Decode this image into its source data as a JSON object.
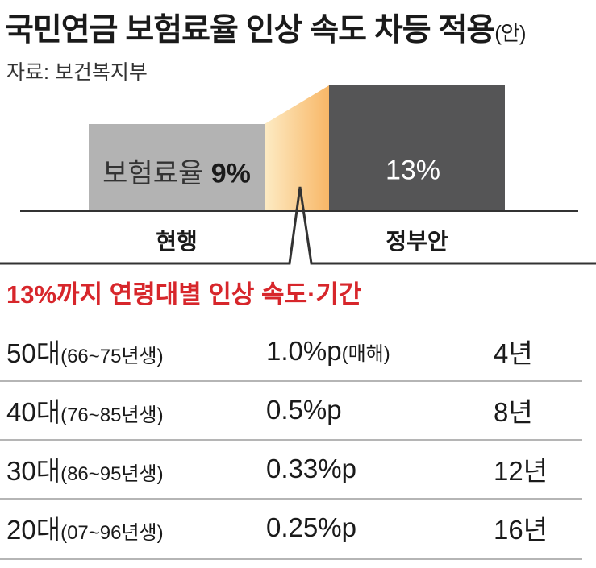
{
  "title": "국민연금 보험료율 인상 속도 차등 적용",
  "title_suffix": "(안)",
  "source": "자료: 보건복지부",
  "chart_data": {
    "type": "bar",
    "categories": [
      "현행",
      "정부안"
    ],
    "values": [
      9,
      13
    ],
    "value_labels": [
      "9%",
      "13%"
    ],
    "current_label_prefix": "보험료율",
    "unit": "%",
    "colors": {
      "current": "#b3b3b3",
      "proposal": "#555556",
      "transition_start": "#fdebc4",
      "transition_end": "#f8b767",
      "accent": "#d7262b"
    }
  },
  "table": {
    "title": "13%까지 연령대별 인상 속도·기간",
    "rows": [
      {
        "age": "50대",
        "gen": "(66~75년생)",
        "rate": "1.0%p",
        "note": "(매해)",
        "period": "4년"
      },
      {
        "age": "40대",
        "gen": "(76~85년생)",
        "rate": "0.5%p",
        "note": "",
        "period": "8년"
      },
      {
        "age": "30대",
        "gen": "(86~95년생)",
        "rate": "0.33%p",
        "note": "",
        "period": "12년"
      },
      {
        "age": "20대",
        "gen": "(07~96년생)",
        "rate": "0.25%p",
        "note": "",
        "period": "16년"
      }
    ]
  }
}
